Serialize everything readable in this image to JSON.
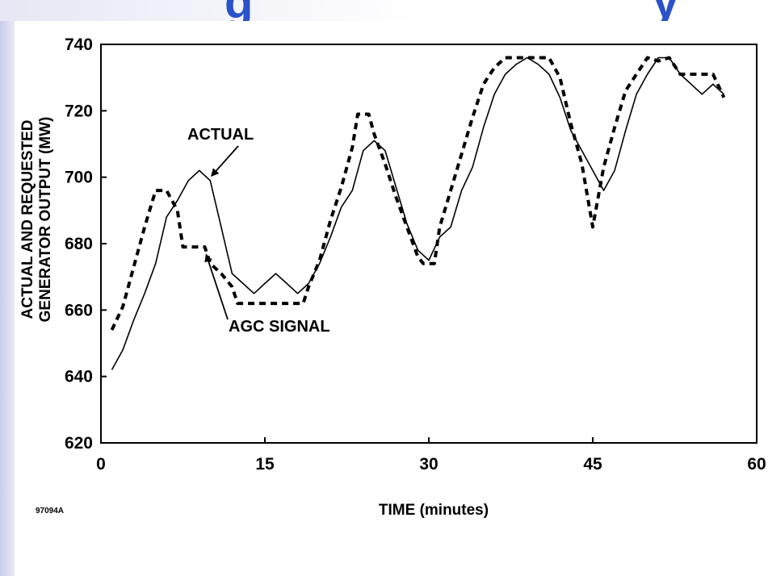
{
  "slide": {
    "figure_code": "97094A"
  },
  "chart_data": {
    "type": "line",
    "xlabel": "TIME (minutes)",
    "ylabel_lines": [
      "ACTUAL AND REQUESTED",
      "GENERATOR OUTPUT (MW)"
    ],
    "xlim": [
      0,
      60
    ],
    "ylim": [
      620,
      740
    ],
    "x_ticks": [
      0,
      15,
      30,
      45,
      60
    ],
    "y_ticks": [
      620,
      640,
      660,
      680,
      700,
      720,
      740
    ],
    "grid": false,
    "series": [
      {
        "name": "ACTUAL",
        "style": "solid",
        "x": [
          1,
          2,
          3,
          4,
          5,
          6,
          7,
          8,
          9,
          10,
          11,
          12,
          13,
          14,
          15,
          16,
          17,
          18,
          19,
          20,
          21,
          22,
          23,
          24,
          25,
          26,
          27,
          28,
          29,
          30,
          31,
          32,
          33,
          34,
          35,
          36,
          37,
          38,
          39,
          40,
          41,
          42,
          43,
          44,
          45,
          46,
          47,
          48,
          49,
          50,
          51,
          52,
          53,
          54,
          55,
          56,
          57
        ],
        "values": [
          642,
          648,
          657,
          665,
          674,
          688,
          693,
          699,
          702,
          699,
          685,
          671,
          668,
          665,
          668,
          671,
          668,
          665,
          668,
          674,
          682,
          691,
          696,
          708,
          711,
          708,
          697,
          686,
          678,
          675,
          682,
          685,
          696,
          703,
          715,
          725,
          731,
          734,
          736,
          734,
          731,
          724,
          714,
          708,
          702,
          696,
          702,
          714,
          725,
          731,
          736,
          736,
          731,
          728,
          725,
          728,
          725
        ]
      },
      {
        "name": "AGC SIGNAL",
        "style": "dashed",
        "x": [
          1,
          2,
          3,
          4,
          5,
          6,
          7,
          7.5,
          9.5,
          10,
          11,
          12,
          12.5,
          18.5,
          19,
          20,
          21,
          22,
          23,
          23.5,
          24.5,
          25,
          26,
          27,
          28,
          29,
          29.5,
          30.5,
          31,
          32,
          33,
          34,
          35,
          36,
          37,
          41,
          42,
          43,
          44,
          45,
          46,
          47,
          48,
          49,
          50,
          51,
          52,
          53,
          56,
          57
        ],
        "values": [
          654,
          661,
          673,
          685,
          696,
          696,
          690,
          679,
          679,
          674,
          671,
          667,
          662,
          662,
          667,
          675,
          687,
          697,
          709,
          719,
          719,
          713,
          704,
          694,
          685,
          676,
          674,
          674,
          685,
          696,
          707,
          718,
          728,
          733,
          736,
          736,
          730,
          716,
          704,
          685,
          703,
          715,
          726,
          731,
          736,
          735,
          736,
          731,
          731,
          724
        ]
      }
    ],
    "annotations": [
      {
        "text": "ACTUAL",
        "points_to": "ACTUAL",
        "at": [
          10,
          700
        ]
      },
      {
        "text": "AGC SIGNAL",
        "points_to": "AGC SIGNAL",
        "at": [
          9.5,
          678
        ]
      }
    ]
  }
}
